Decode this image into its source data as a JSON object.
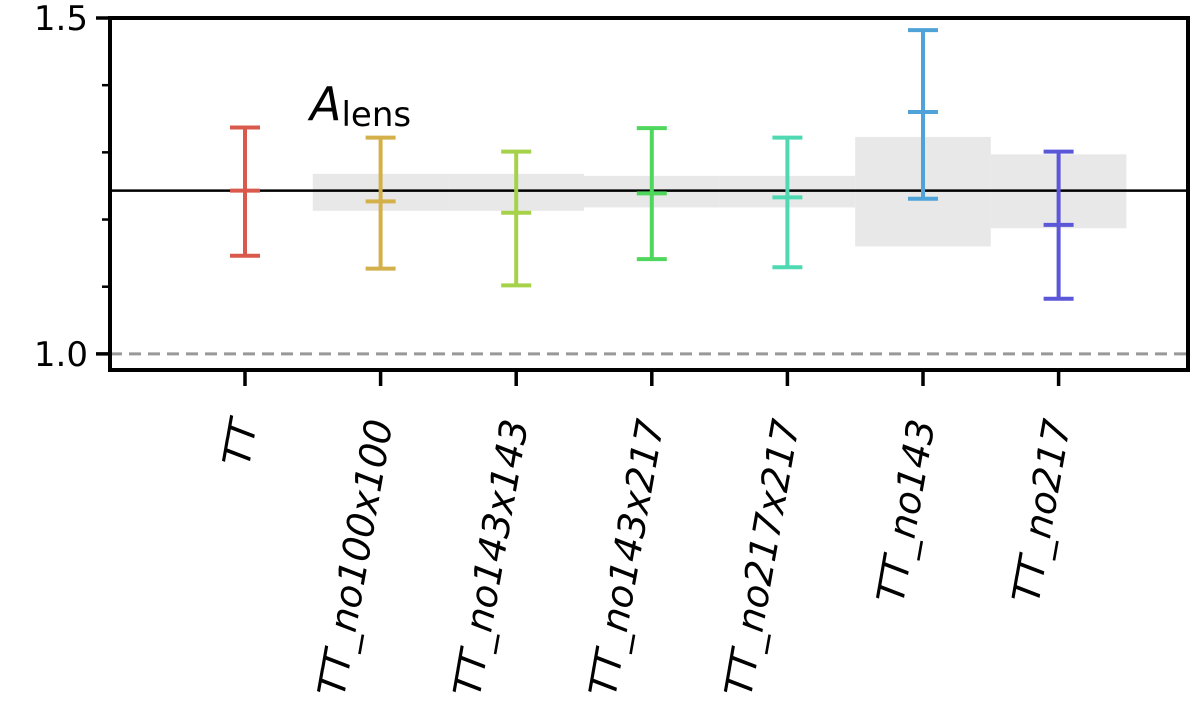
{
  "chart_data": {
    "type": "errorbar",
    "title": "",
    "xlabel": "",
    "ylabel": "",
    "ylim": [
      0.976,
      1.5
    ],
    "yticks": [
      1.0,
      1.5
    ],
    "yticks_minor": [
      1.1,
      1.2,
      1.3,
      1.4
    ],
    "ytick_labels": [
      "1.0",
      "1.5"
    ],
    "categories": [
      "TT",
      "TT_no100x100",
      "TT_no143x143",
      "TT_no143x217",
      "TT_no217x217",
      "TT_no143",
      "TT_no217"
    ],
    "points": [
      {
        "category": "TT",
        "value": 1.243,
        "low": 1.146,
        "high": 1.337,
        "color": "#d9594c"
      },
      {
        "category": "TT_no100x100",
        "value": 1.227,
        "low": 1.127,
        "high": 1.322,
        "color": "#d4b04a"
      },
      {
        "category": "TT_no143x143",
        "value": 1.21,
        "low": 1.102,
        "high": 1.301,
        "color": "#a6d24a"
      },
      {
        "category": "TT_no143x217",
        "value": 1.239,
        "low": 1.141,
        "high": 1.336,
        "color": "#4fd65c"
      },
      {
        "category": "TT_no217x217",
        "value": 1.233,
        "low": 1.129,
        "high": 1.322,
        "color": "#4fd9b3"
      },
      {
        "category": "TT_no143",
        "value": 1.36,
        "low": 1.231,
        "high": 1.482,
        "color": "#4fa3d9"
      },
      {
        "category": "TT_no217",
        "value": 1.192,
        "low": 1.082,
        "high": 1.301,
        "color": "#5b57d9"
      }
    ],
    "bands": [
      {
        "category": "TT_no100x100",
        "low": 1.213,
        "high": 1.268
      },
      {
        "category": "TT_no143x143",
        "low": 1.213,
        "high": 1.268
      },
      {
        "category": "TT_no143x217",
        "low": 1.218,
        "high": 1.265
      },
      {
        "category": "TT_no217x217",
        "low": 1.218,
        "high": 1.265
      },
      {
        "category": "TT_no143",
        "low": 1.16,
        "high": 1.323
      },
      {
        "category": "TT_no217",
        "low": 1.187,
        "high": 1.297
      }
    ],
    "reference_line": 1.243,
    "dashed_line": 1.0,
    "annotation": {
      "main": "A",
      "sub": "lens"
    },
    "grid": false,
    "legend": "none"
  }
}
